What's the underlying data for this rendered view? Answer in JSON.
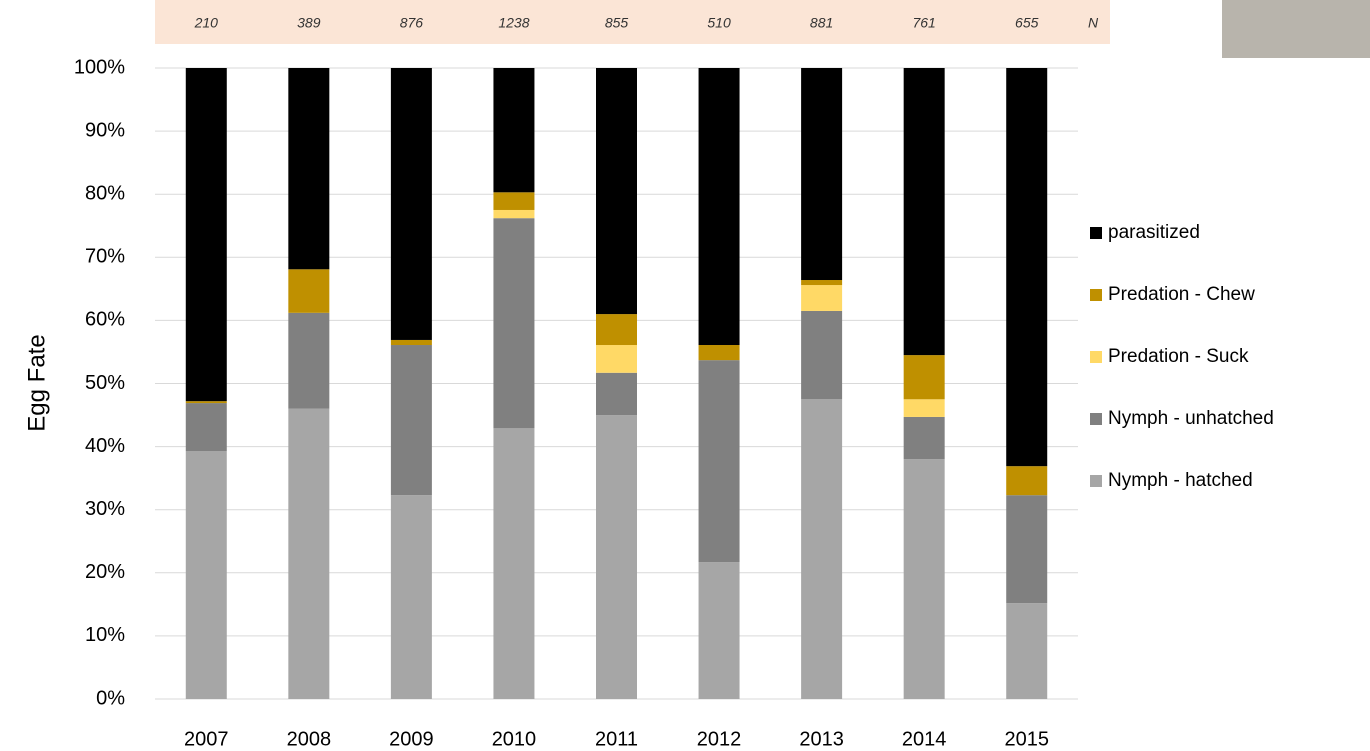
{
  "chart_data": {
    "type": "bar",
    "stacked": true,
    "y_axis_label": "Egg Fate",
    "categories": [
      "2007",
      "2008",
      "2009",
      "2010",
      "2011",
      "2012",
      "2013",
      "2014",
      "2015"
    ],
    "n_values": [
      210,
      389,
      876,
      1238,
      855,
      510,
      881,
      761,
      655
    ],
    "n_label": "N",
    "series": [
      {
        "name": "Nymph - hatched",
        "color": "#a6a6a6",
        "values": [
          39.3,
          46.0,
          32.3,
          42.9,
          45.0,
          21.7,
          47.5,
          38.0,
          15.2
        ]
      },
      {
        "name": "Nymph - unhatched",
        "color": "#808080",
        "values": [
          7.6,
          15.2,
          23.8,
          33.3,
          6.7,
          32.0,
          14.0,
          6.7,
          17.1
        ]
      },
      {
        "name": "Predation - Suck",
        "color": "#ffd966",
        "values": [
          0,
          0,
          0,
          1.3,
          4.4,
          0,
          4.1,
          2.8,
          0
        ]
      },
      {
        "name": "Predation - Chew",
        "color": "#bf9000",
        "values": [
          0.3,
          6.9,
          0.8,
          2.8,
          4.9,
          2.4,
          0.8,
          7.0,
          4.6
        ]
      },
      {
        "name": "parasitized",
        "color": "#000000",
        "values": [
          52.8,
          31.9,
          43.1,
          19.7,
          39.0,
          43.9,
          33.6,
          45.5,
          63.1
        ]
      }
    ],
    "ylim": [
      0,
      100
    ],
    "yticks": [
      {
        "value": 0,
        "label": "0%"
      },
      {
        "value": 10,
        "label": "10%"
      },
      {
        "value": 20,
        "label": "20%"
      },
      {
        "value": 30,
        "label": "30%"
      },
      {
        "value": 40,
        "label": "40%"
      },
      {
        "value": 50,
        "label": "50%"
      },
      {
        "value": 60,
        "label": "60%"
      },
      {
        "value": 70,
        "label": "70%"
      },
      {
        "value": 80,
        "label": "80%"
      },
      {
        "value": 90,
        "label": "90%"
      },
      {
        "value": 100,
        "label": "100%"
      }
    ],
    "grid": true
  }
}
